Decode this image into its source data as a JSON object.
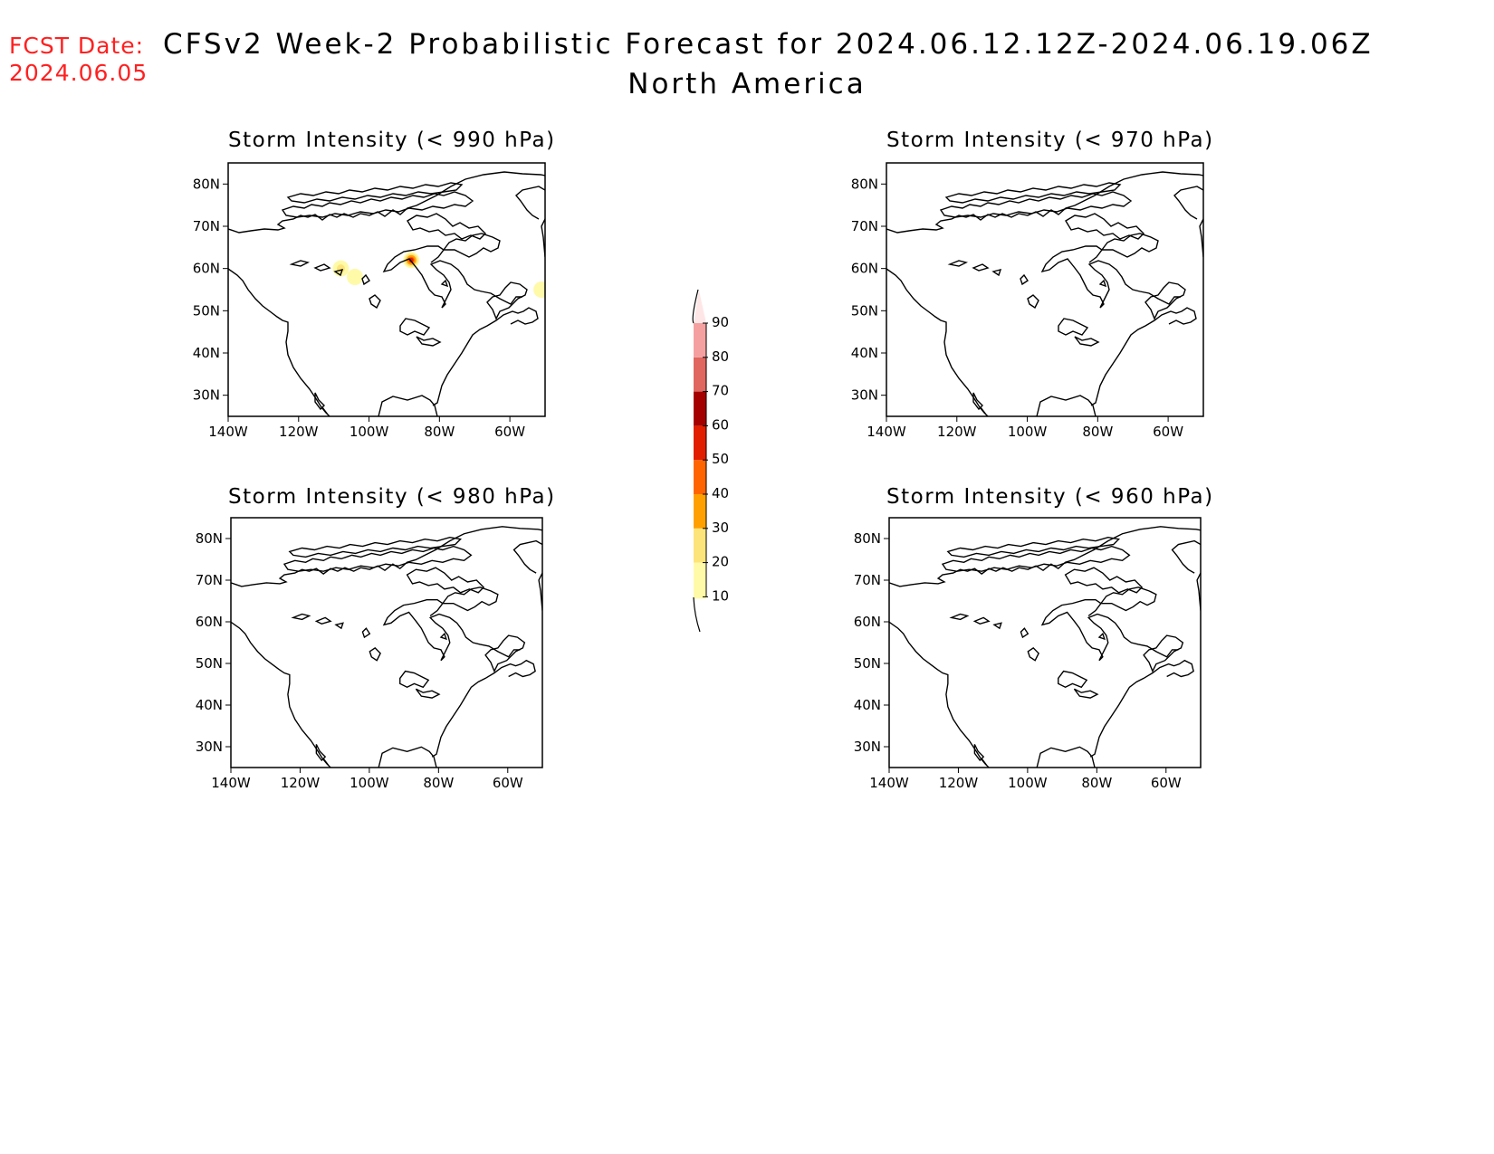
{
  "header": {
    "fcst_label": "FCST Date:",
    "fcst_date": "2024.06.05",
    "title": "CFSv2 Week-2 Probabilistic Forecast for 2024.06.12.12Z-2024.06.19.06Z",
    "region": "North America"
  },
  "panels": [
    {
      "title": "Storm Intensity (< 990 hPa)"
    },
    {
      "title": "Storm Intensity (< 970 hPa)"
    },
    {
      "title": "Storm Intensity (< 980 hPa)"
    },
    {
      "title": "Storm Intensity (< 960 hPa)"
    }
  ],
  "axes": {
    "lat_labels": [
      "80N",
      "70N",
      "60N",
      "50N",
      "40N",
      "30N"
    ],
    "lat_values": [
      80,
      70,
      60,
      50,
      40,
      30
    ],
    "lon_labels": [
      "140W",
      "120W",
      "100W",
      "80W",
      "60W"
    ],
    "lon_values": [
      -140,
      -120,
      -100,
      -80,
      -60
    ],
    "lat_range": [
      25,
      85
    ],
    "lon_range": [
      -140,
      -50
    ]
  },
  "colorbar": {
    "levels": [
      "10",
      "20",
      "30",
      "40",
      "50",
      "60",
      "70",
      "80",
      "90"
    ],
    "colors": [
      "#fffaa8",
      "#fde47a",
      "#ffa000",
      "#ff6400",
      "#e11e00",
      "#a50000",
      "#e06660",
      "#f5a0a0",
      "#ffe6e6"
    ]
  },
  "probability_areas": [
    {
      "panel": 0,
      "lat": 62,
      "lon": -88,
      "value": 50
    },
    {
      "panel": 0,
      "lat": 60,
      "lon": -108,
      "value": 20
    },
    {
      "panel": 0,
      "lat": 58,
      "lon": -104,
      "value": 10
    },
    {
      "panel": 0,
      "lat": 55,
      "lon": -51,
      "value": 10
    }
  ]
}
